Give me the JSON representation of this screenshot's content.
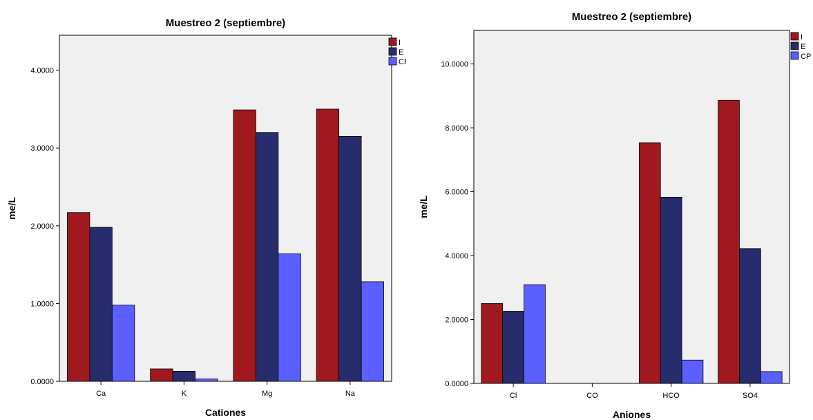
{
  "chart_data": [
    {
      "type": "bar",
      "title": "Muestreo 2 (septiembre)",
      "xlabel": "Cationes",
      "ylabel": "me/L",
      "categories": [
        "Ca",
        "K",
        "Mg",
        "Na"
      ],
      "series": [
        {
          "name": "I",
          "values": [
            2.17,
            0.16,
            3.49,
            3.5
          ],
          "color": "#a0191e"
        },
        {
          "name": "E",
          "values": [
            1.98,
            0.13,
            3.2,
            3.15
          ],
          "color": "#262c6c"
        },
        {
          "name": "CP",
          "values": [
            0.98,
            0.03,
            1.64,
            1.28
          ],
          "color": "#5b5fff"
        }
      ],
      "yticks": [
        "0.0000",
        "1.0000",
        "2.0000",
        "3.0000",
        "4.0000"
      ],
      "ylim": [
        0,
        4.45
      ],
      "grid": false,
      "legend": "top-right",
      "background": "#f0f0f0"
    },
    {
      "type": "bar",
      "title": "Muestreo 2 (septiembre)",
      "xlabel": "Aniones",
      "ylabel": "me/L",
      "categories": [
        "Cl",
        "CO",
        "HCO",
        "SO4"
      ],
      "series": [
        {
          "name": "I",
          "values": [
            2.5,
            0,
            7.53,
            8.86
          ],
          "color": "#a0191e"
        },
        {
          "name": "E",
          "values": [
            2.26,
            0,
            5.83,
            4.22
          ],
          "color": "#262c6c"
        },
        {
          "name": "CP",
          "values": [
            3.09,
            0,
            0.73,
            0.37
          ],
          "color": "#5b5fff"
        }
      ],
      "yticks": [
        "0.0000",
        "2.0000",
        "4.0000",
        "6.0000",
        "8.0000",
        "10.0000"
      ],
      "ylim": [
        0,
        11.05
      ],
      "grid": false,
      "legend": "top-right",
      "background": "#f0f0f0"
    }
  ]
}
